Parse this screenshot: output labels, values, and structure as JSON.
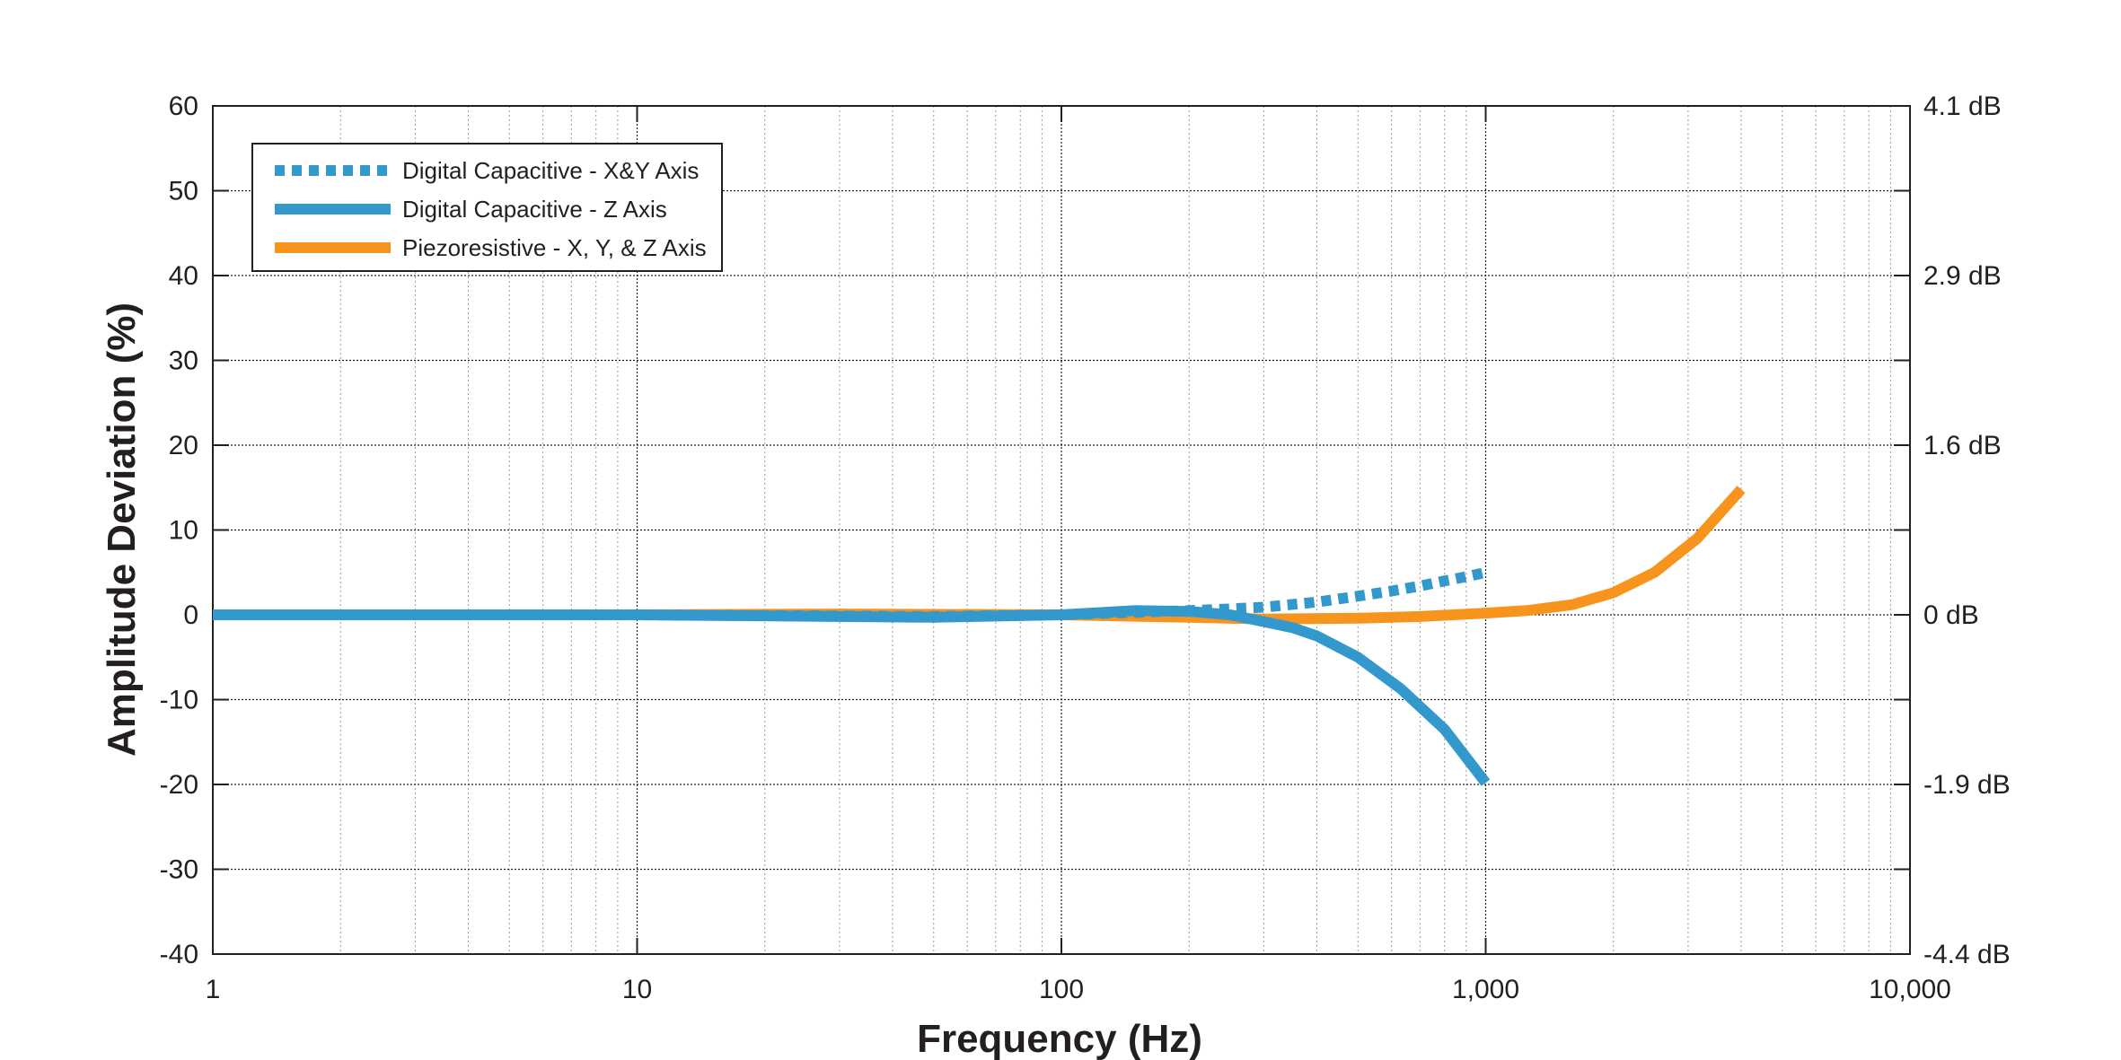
{
  "chart_data": {
    "type": "line",
    "xscale": "log",
    "xlim": [
      1,
      10000
    ],
    "ylim": [
      -40,
      60
    ],
    "xlabel": "Frequency (Hz)",
    "ylabel": "Amplitude Deviation (%)",
    "grid": true,
    "legend_position": "top-left",
    "x_ticks": [
      1,
      10,
      100,
      1000,
      10000
    ],
    "x_tick_labels": [
      "1",
      "10",
      "100",
      "1,000",
      "10,000"
    ],
    "y_ticks": [
      60,
      50,
      40,
      30,
      20,
      10,
      0,
      -10,
      -20,
      -30,
      -40
    ],
    "y_tick_labels": [
      "60",
      "50",
      "40",
      "30",
      "20",
      "10",
      "0",
      "-10",
      "-20",
      "-30",
      "-40"
    ],
    "y2_ticks": [
      60,
      40,
      20,
      0,
      -20,
      -40
    ],
    "y2_tick_labels": [
      "4.1 dB",
      "2.9 dB",
      "1.6 dB",
      "0 dB",
      "-1.9 dB",
      "-4.4 dB"
    ],
    "series": [
      {
        "name": "Digital Capacitive - X&Y Axis",
        "color": "#3399cc",
        "dash": "dotted",
        "x": [
          1,
          10,
          50,
          100,
          150,
          200,
          250,
          300,
          400,
          500,
          600,
          700,
          800,
          900,
          1000
        ],
        "y": [
          0,
          0,
          -0.2,
          0,
          0.3,
          0.5,
          0.7,
          0.9,
          1.5,
          2.2,
          2.8,
          3.4,
          4.0,
          4.5,
          5.0
        ]
      },
      {
        "name": "Digital Capacitive - Z Axis",
        "color": "#3399cc",
        "dash": "solid",
        "x": [
          1,
          10,
          50,
          100,
          150,
          200,
          250,
          300,
          350,
          400,
          500,
          630,
          800,
          1000
        ],
        "y": [
          0,
          0,
          -0.3,
          0,
          0.5,
          0.4,
          0.0,
          -0.8,
          -1.5,
          -2.5,
          -5.0,
          -8.7,
          -13.5,
          -19.8
        ]
      },
      {
        "name": "Piezoresistive - X, Y, & Z Axis",
        "color": "#f7941d",
        "dash": "solid",
        "x": [
          1,
          10,
          30,
          100,
          200,
          300,
          500,
          700,
          1000,
          1250,
          1600,
          2000,
          2500,
          3150,
          4000
        ],
        "y": [
          0,
          0,
          0.1,
          0,
          -0.3,
          -0.5,
          -0.4,
          -0.2,
          0.2,
          0.5,
          1.2,
          2.6,
          5.0,
          9.0,
          14.8
        ]
      }
    ]
  }
}
